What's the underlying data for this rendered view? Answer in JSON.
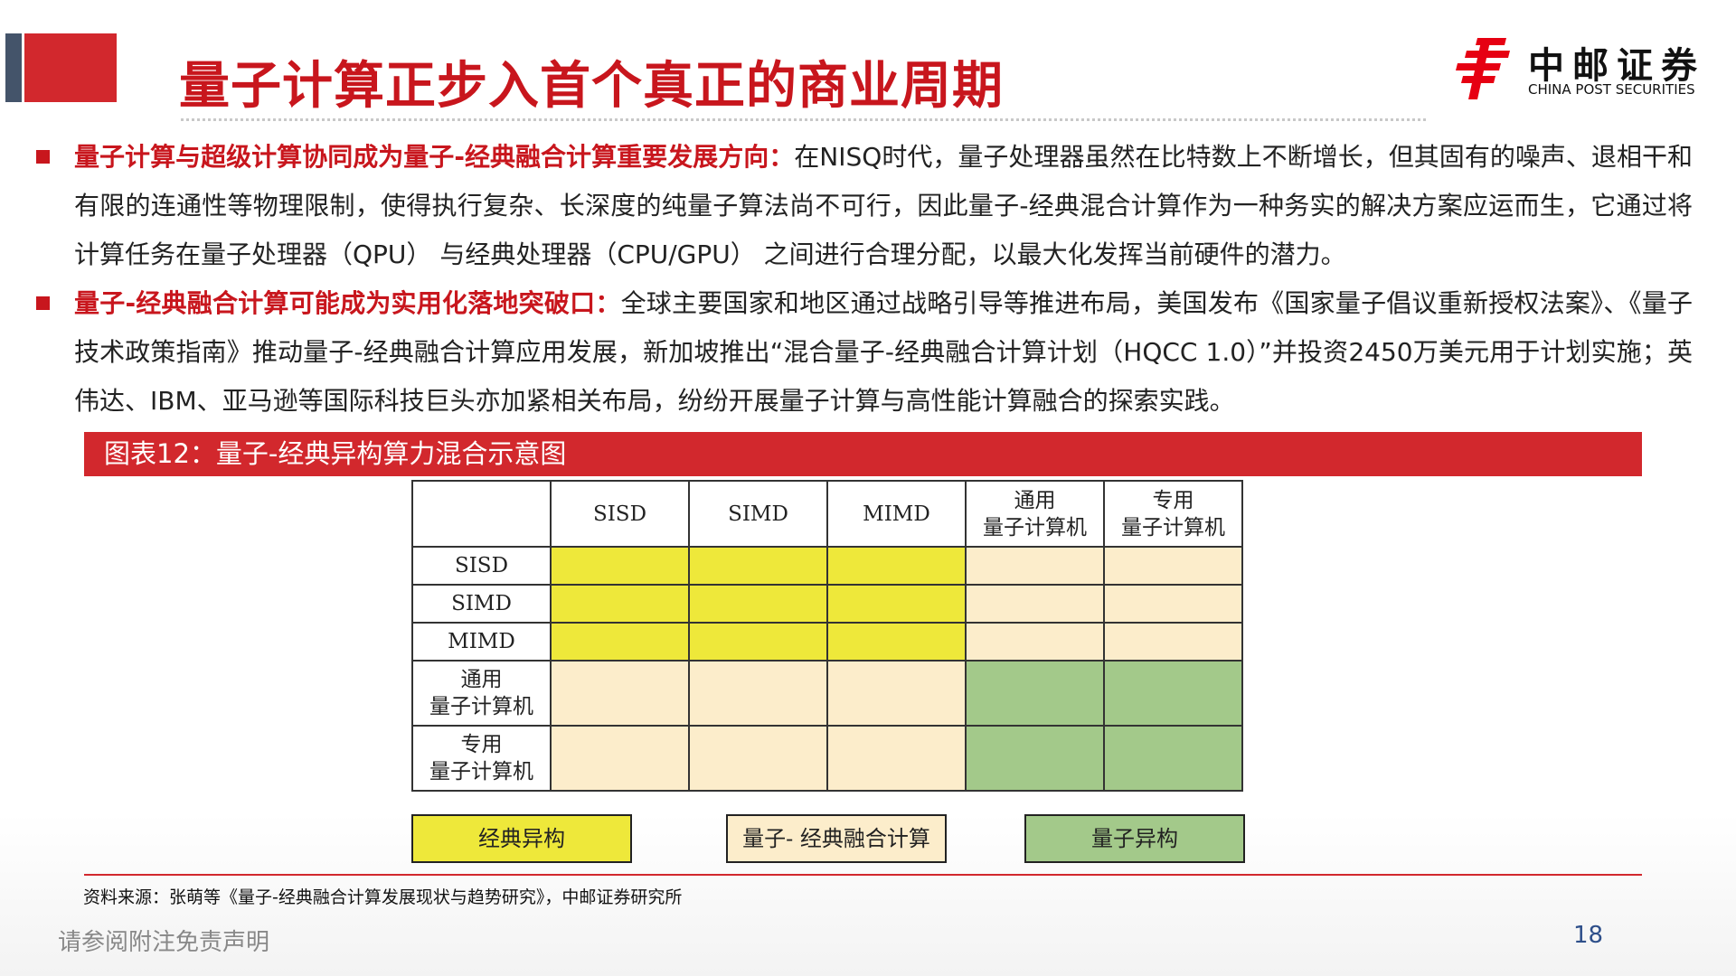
{
  "header": {
    "title": "量子计算正步入首个真正的商业周期",
    "logo_cn": "中邮证券",
    "logo_en": "CHINA POST SECURITIES"
  },
  "bullets": [
    {
      "heading": "量子计算与超级计算协同成为量子-经典融合计算重要发展方向：",
      "body": "在NISQ时代，量子处理器虽然在比特数上不断增长，但其固有的噪声、退相干和有限的连通性等物理限制，使得执行复杂、长深度的纯量子算法尚不可行，因此量子-经典混合计算作为一种务实的解决方案应运而生，它通过将计算任务在量子处理器（QPU） 与经典处理器（CPU/GPU） 之间进行合理分配，以最大化发挥当前硬件的潜力。"
    },
    {
      "heading": "量子-经典融合计算可能成为实用化落地突破口：",
      "body": "全球主要国家和地区通过战略引导等推进布局，美国发布《国家量子倡议重新授权法案》、《量子技术政策指南》推动量子-经典融合计算应用发展，新加坡推出“混合量子-经典融合计算计划（HQCC 1.0）”并投资2450万美元用于计划实施；英伟达、IBM、亚马逊等国际科技巨头亦加紧相关布局，纷纷开展量子计算与高性能计算融合的探索实践。"
    }
  ],
  "figure": {
    "caption": "图表12：量子-经典异构算力混合示意图",
    "columns": [
      "",
      "SISD",
      "SIMD",
      "MIMD",
      "通用\n量子计算机",
      "专用\n量子计算机"
    ],
    "rows": [
      {
        "label": "SISD",
        "cells": [
          "y",
          "y",
          "y",
          "b",
          "b"
        ]
      },
      {
        "label": "SIMD",
        "cells": [
          "y",
          "y",
          "y",
          "b",
          "b"
        ]
      },
      {
        "label": "MIMD",
        "cells": [
          "y",
          "y",
          "y",
          "b",
          "b"
        ]
      },
      {
        "label": "通用\n量子计算机",
        "cells": [
          "b",
          "b",
          "b",
          "g",
          "g"
        ]
      },
      {
        "label": "专用\n量子计算机",
        "cells": [
          "b",
          "b",
          "b",
          "g",
          "g"
        ]
      }
    ],
    "legend": [
      {
        "key": "y",
        "label": "经典异构",
        "color": "#eee83a"
      },
      {
        "key": "b",
        "label": "量子- 经典融合计算",
        "color": "#fcedcb"
      },
      {
        "key": "g",
        "label": "量子异构",
        "color": "#a3c98a"
      }
    ]
  },
  "source": "资料来源：张萌等《量子-经典融合计算发展现状与趋势研究》，中邮证券研究所",
  "footer": {
    "disclaimer": "请参阅附注免责声明",
    "page_number": "18"
  },
  "colors": {
    "brand_red": "#c8161d",
    "accent_gray": "#44546a"
  }
}
